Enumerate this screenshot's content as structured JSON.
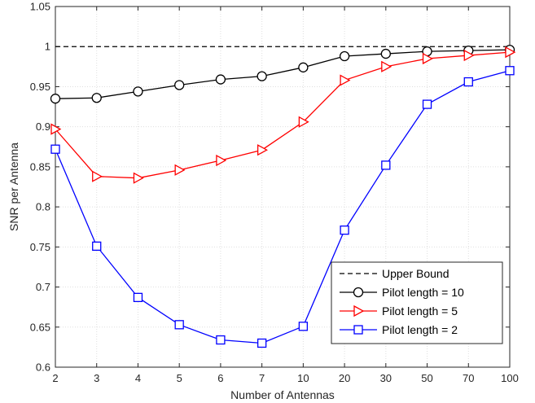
{
  "chart_data": {
    "type": "line",
    "title": "",
    "xlabel": "Number of Antennas",
    "ylabel": "SNR per Antenna",
    "categories": [
      "2",
      "3",
      "4",
      "5",
      "6",
      "7",
      "10",
      "20",
      "30",
      "50",
      "70",
      "100"
    ],
    "ylim": [
      0.6,
      1.05
    ],
    "yticks": [
      "0.6",
      "0.65",
      "0.7",
      "0.75",
      "0.8",
      "0.85",
      "0.9",
      "0.95",
      "1",
      "1.05"
    ],
    "grid": true,
    "legend_position": "bottom-right",
    "series": [
      {
        "name": "Upper Bound",
        "color": "#000000",
        "line_style": "dashed",
        "marker": "none",
        "values": [
          1,
          1,
          1,
          1,
          1,
          1,
          1,
          1,
          1,
          1,
          1,
          1
        ]
      },
      {
        "name": "Pilot length = 10",
        "color": "#000000",
        "line_style": "solid",
        "marker": "circle",
        "values": [
          0.935,
          0.936,
          0.944,
          0.952,
          0.959,
          0.963,
          0.974,
          0.988,
          0.991,
          0.994,
          0.995,
          0.996
        ]
      },
      {
        "name": "Pilot length = 5",
        "color": "#ff0000",
        "line_style": "solid",
        "marker": "triangle-right",
        "values": [
          0.897,
          0.838,
          0.836,
          0.846,
          0.858,
          0.871,
          0.906,
          0.958,
          0.975,
          0.985,
          0.989,
          0.993
        ]
      },
      {
        "name": "Pilot length = 2",
        "color": "#0000ff",
        "line_style": "solid",
        "marker": "square",
        "values": [
          0.872,
          0.751,
          0.687,
          0.653,
          0.634,
          0.63,
          0.651,
          0.771,
          0.852,
          0.928,
          0.956,
          0.97
        ]
      }
    ]
  }
}
